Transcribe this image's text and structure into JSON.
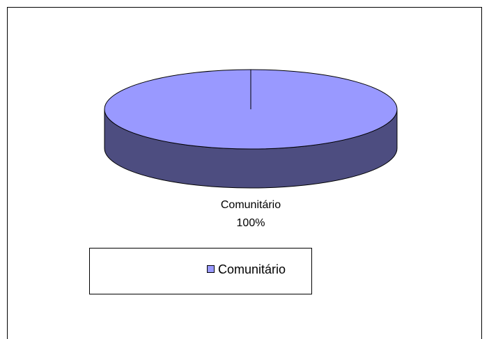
{
  "chart_data": {
    "type": "pie",
    "categories": [
      "Comunitário"
    ],
    "values": [
      100
    ],
    "value_labels": [
      "100%"
    ],
    "colors": [
      "#9999ff"
    ],
    "legend": "bottom"
  }
}
